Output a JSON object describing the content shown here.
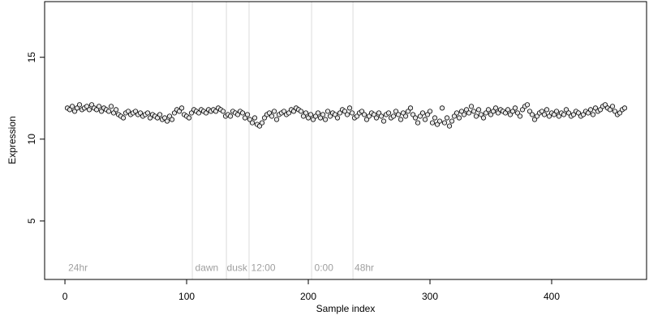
{
  "chart_data": {
    "type": "scatter",
    "xlabel": "Sample index",
    "ylabel": "Expression",
    "xlim": [
      -16.7,
      478
    ],
    "ylim": [
      1.43,
      18.4
    ],
    "xticks": [
      0,
      100,
      200,
      300,
      400
    ],
    "yticks": [
      5,
      10,
      15
    ],
    "vlines": [
      104.7,
      132.7,
      151.3,
      202.7,
      236.7
    ],
    "annotations": [
      {
        "label": "24hr",
        "x": 2.7
      },
      {
        "label": "dawn",
        "x": 107
      },
      {
        "label": "dusk",
        "x": 133
      },
      {
        "label": "12:00",
        "x": 153
      },
      {
        "label": "0:00",
        "x": 205
      },
      {
        "label": "48hr",
        "x": 238
      }
    ],
    "annotation_y": 2.1,
    "series": [
      {
        "color": "#e6e6e6",
        "x": [
          2,
          4,
          6,
          8,
          10,
          12,
          14,
          16,
          18,
          20,
          22,
          24,
          26,
          28,
          30,
          32,
          34,
          36,
          38,
          40,
          42,
          44,
          46,
          48,
          50,
          52,
          54,
          56,
          58,
          60,
          62,
          64,
          66,
          68,
          70,
          72,
          74,
          76,
          78,
          80,
          82,
          84,
          86,
          88,
          90,
          92,
          94,
          96,
          98,
          100,
          102,
          104,
          106,
          108,
          110,
          112,
          114,
          116,
          118,
          120,
          122,
          124,
          126,
          128,
          130,
          132,
          134,
          136,
          138,
          140,
          142,
          144,
          146,
          148,
          150,
          152,
          154,
          156,
          158,
          160,
          162,
          164,
          166,
          168,
          170,
          172,
          174,
          176,
          178,
          180,
          182,
          184,
          186,
          188,
          190,
          192,
          194,
          196,
          198,
          200,
          202,
          204,
          206,
          208,
          210,
          212,
          214,
          216,
          218,
          220,
          222,
          224,
          226,
          228,
          230,
          232,
          234,
          236,
          238,
          240,
          242,
          244,
          246,
          248,
          250,
          252,
          254,
          256,
          258,
          260,
          262,
          264,
          266,
          268,
          270,
          272,
          274,
          276,
          278,
          280,
          282,
          284,
          286,
          288,
          290,
          292,
          294,
          296,
          298,
          300,
          302,
          304,
          306,
          308,
          310,
          312,
          314,
          316,
          318,
          320,
          322,
          324,
          326,
          328,
          330,
          332,
          334,
          336,
          338,
          340,
          342,
          344,
          346,
          348,
          350,
          352,
          354,
          356,
          358,
          360,
          362,
          364,
          366,
          368,
          370,
          372,
          374,
          376,
          378,
          380,
          382,
          384,
          386,
          388,
          390,
          392,
          394,
          396,
          398,
          400,
          402,
          404,
          406,
          408,
          410,
          412,
          414,
          416,
          418,
          420,
          422,
          424,
          426,
          428,
          430,
          432,
          434,
          436,
          438,
          440,
          442,
          444,
          446,
          448,
          450,
          452,
          454,
          456,
          458,
          460
        ],
        "values": [
          11.9,
          11.8,
          12.0,
          11.7,
          11.9,
          12.1,
          11.8,
          11.9,
          12.0,
          11.8,
          12.1,
          11.9,
          11.8,
          12.0,
          11.7,
          11.9,
          11.8,
          11.7,
          12.0,
          11.6,
          11.8,
          11.5,
          11.4,
          11.3,
          11.6,
          11.7,
          11.5,
          11.6,
          11.7,
          11.5,
          11.6,
          11.4,
          11.5,
          11.6,
          11.3,
          11.5,
          11.4,
          11.3,
          11.5,
          11.2,
          11.3,
          11.1,
          11.4,
          11.2,
          11.6,
          11.8,
          11.7,
          11.9,
          11.5,
          11.4,
          11.3,
          11.6,
          11.8,
          11.7,
          11.6,
          11.8,
          11.7,
          11.6,
          11.8,
          11.7,
          11.8,
          11.7,
          11.9,
          11.8,
          11.7,
          11.4,
          11.5,
          11.4,
          11.7,
          11.6,
          11.5,
          11.7,
          11.6,
          11.3,
          11.5,
          11.2,
          11.0,
          11.3,
          10.9,
          10.8,
          11.0,
          11.3,
          11.5,
          11.6,
          11.4,
          11.7,
          11.2,
          11.5,
          11.6,
          11.7,
          11.5,
          11.6,
          11.8,
          11.7,
          11.9,
          11.8,
          11.7,
          11.4,
          11.6,
          11.3,
          11.5,
          11.2,
          11.4,
          11.6,
          11.3,
          11.5,
          11.2,
          11.7,
          11.4,
          11.6,
          11.5,
          11.3,
          11.6,
          11.8,
          11.7,
          11.5,
          11.9,
          11.6,
          11.3,
          11.4,
          11.6,
          11.7,
          11.5,
          11.2,
          11.4,
          11.6,
          11.5,
          11.3,
          11.6,
          11.4,
          11.1,
          11.5,
          11.6,
          11.3,
          11.4,
          11.7,
          11.5,
          11.2,
          11.6,
          11.4,
          11.7,
          11.9,
          11.5,
          11.3,
          11.0,
          11.4,
          11.6,
          11.2,
          11.5,
          11.7,
          11.0,
          11.3,
          10.9,
          11.1,
          11.9,
          11.0,
          11.3,
          10.8,
          11.1,
          11.4,
          11.6,
          11.3,
          11.7,
          11.5,
          11.8,
          11.6,
          12.0,
          11.7,
          11.4,
          11.8,
          11.5,
          11.3,
          11.6,
          11.8,
          11.5,
          11.7,
          11.9,
          11.6,
          11.8,
          11.7,
          11.6,
          11.8,
          11.5,
          11.7,
          11.9,
          11.6,
          11.4,
          11.8,
          12.0,
          12.1,
          11.7,
          11.5,
          11.2,
          11.4,
          11.6,
          11.7,
          11.5,
          11.8,
          11.4,
          11.6,
          11.5,
          11.7,
          11.4,
          11.6,
          11.5,
          11.8,
          11.6,
          11.4,
          11.5,
          11.7,
          11.6,
          11.4,
          11.5,
          11.7,
          11.6,
          11.8,
          11.5,
          11.9,
          11.7,
          11.8,
          12.0,
          12.1,
          11.9,
          11.8,
          12.0,
          11.7,
          11.5,
          11.6,
          11.8,
          11.9
        ]
      }
    ]
  }
}
